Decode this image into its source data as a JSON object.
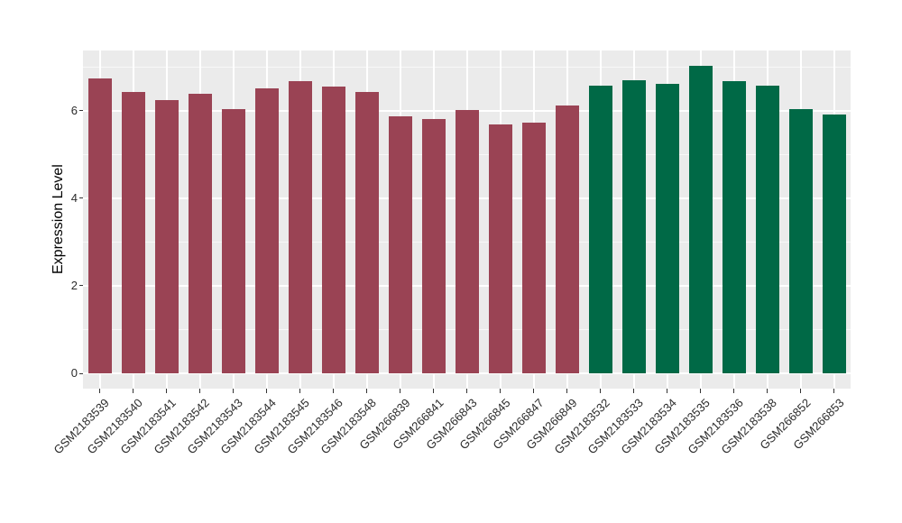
{
  "chart_data": {
    "type": "bar",
    "title": "",
    "xlabel": "",
    "ylabel": "Expression Level",
    "ylim": [
      -0.35,
      7.38
    ],
    "yticks": [
      0,
      2,
      4,
      6
    ],
    "yticks_minor": [
      1,
      3,
      5,
      7
    ],
    "grid": true,
    "legend_position": "none",
    "categories": [
      "GSM2183539",
      "GSM2183540",
      "GSM2183541",
      "GSM2183542",
      "GSM2183543",
      "GSM2183544",
      "GSM2183545",
      "GSM2183546",
      "GSM2183548",
      "GSM266839",
      "GSM266841",
      "GSM266843",
      "GSM266845",
      "GSM266847",
      "GSM266849",
      "GSM2183532",
      "GSM2183533",
      "GSM2183534",
      "GSM2183535",
      "GSM2183536",
      "GSM2183538",
      "GSM266852",
      "GSM266853"
    ],
    "values": [
      6.75,
      6.44,
      6.25,
      6.4,
      6.04,
      6.51,
      6.68,
      6.56,
      6.44,
      5.88,
      5.81,
      6.03,
      5.69,
      5.74,
      6.12,
      6.57,
      6.7,
      6.61,
      7.02,
      6.68,
      6.58,
      6.05,
      5.92
    ],
    "bar_colors": [
      "#9A4354",
      "#9A4354",
      "#9A4354",
      "#9A4354",
      "#9A4354",
      "#9A4354",
      "#9A4354",
      "#9A4354",
      "#9A4354",
      "#9A4354",
      "#9A4354",
      "#9A4354",
      "#9A4354",
      "#9A4354",
      "#9A4354",
      "#006946",
      "#006946",
      "#006946",
      "#006946",
      "#006946",
      "#006946",
      "#006946",
      "#006946"
    ],
    "group_colors": {
      "group1_red": "#9A4354",
      "group2_green": "#006946"
    },
    "style": {
      "panel_background": "#EBEBEB",
      "gridline_color": "#FFFFFF",
      "tick_color": "#333333",
      "axis_text_color": "#2b2b2b",
      "figure_background": "#FFFFFF"
    }
  }
}
